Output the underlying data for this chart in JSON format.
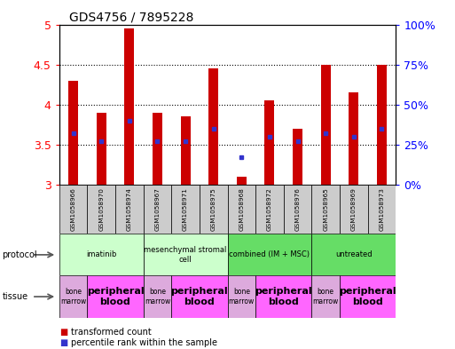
{
  "title": "GDS4756 / 7895228",
  "samples": [
    "GSM1058966",
    "GSM1058970",
    "GSM1058974",
    "GSM1058967",
    "GSM1058971",
    "GSM1058975",
    "GSM1058968",
    "GSM1058972",
    "GSM1058976",
    "GSM1058965",
    "GSM1058969",
    "GSM1058973"
  ],
  "bar_values": [
    4.3,
    3.9,
    4.95,
    3.9,
    3.85,
    4.45,
    3.1,
    4.05,
    3.7,
    4.5,
    4.15,
    4.5
  ],
  "percentile_values": [
    3.65,
    3.55,
    3.8,
    3.55,
    3.55,
    3.7,
    3.35,
    3.6,
    3.55,
    3.65,
    3.6,
    3.7
  ],
  "ylim": [
    3.0,
    5.0
  ],
  "yticks": [
    3.0,
    3.5,
    4.0,
    4.5,
    5.0
  ],
  "ytick_labels": [
    "3",
    "3.5",
    "4",
    "4.5",
    "5"
  ],
  "bar_color": "#cc0000",
  "percentile_color": "#3333cc",
  "bar_bottom": 3.0,
  "bar_width": 0.35,
  "protocols": [
    {
      "label": "imatinib",
      "start": 0,
      "end": 3,
      "color": "#ccffcc"
    },
    {
      "label": "mesenchymal stromal\ncell",
      "start": 3,
      "end": 6,
      "color": "#ccffcc"
    },
    {
      "label": "combined (IM + MSC)",
      "start": 6,
      "end": 9,
      "color": "#66dd66"
    },
    {
      "label": "untreated",
      "start": 9,
      "end": 12,
      "color": "#66dd66"
    }
  ],
  "tissues": [
    {
      "label": "bone\nmarrow",
      "start": 0,
      "end": 1,
      "color": "#ddaadd",
      "small": true
    },
    {
      "label": "peripheral\nblood",
      "start": 1,
      "end": 3,
      "color": "#ff66ff",
      "small": false
    },
    {
      "label": "bone\nmarrow",
      "start": 3,
      "end": 4,
      "color": "#ddaadd",
      "small": true
    },
    {
      "label": "peripheral\nblood",
      "start": 4,
      "end": 6,
      "color": "#ff66ff",
      "small": false
    },
    {
      "label": "bone\nmarrow",
      "start": 6,
      "end": 7,
      "color": "#ddaadd",
      "small": true
    },
    {
      "label": "peripheral\nblood",
      "start": 7,
      "end": 9,
      "color": "#ff66ff",
      "small": false
    },
    {
      "label": "bone\nmarrow",
      "start": 9,
      "end": 10,
      "color": "#ddaadd",
      "small": true
    },
    {
      "label": "peripheral\nblood",
      "start": 10,
      "end": 12,
      "color": "#ff66ff",
      "small": false
    }
  ],
  "right_yticks": [
    0,
    25,
    50,
    75,
    100
  ],
  "right_ylabels": [
    "0%",
    "25%",
    "50%",
    "75%",
    "100%"
  ],
  "sample_box_color": "#cccccc",
  "legend_red_label": "transformed count",
  "legend_blue_label": "percentile rank within the sample",
  "fig_width": 5.13,
  "fig_height": 3.93
}
